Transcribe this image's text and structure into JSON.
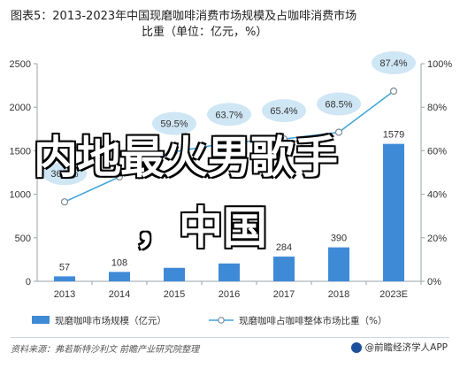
{
  "title_line1": "图表5：2013-2023年中国现磨咖啡消费市场规模及占咖啡消费市场",
  "title_line2": "比重（单位：亿元，%）",
  "chart_data": {
    "type": "bar",
    "categories": [
      "2013",
      "2014",
      "2015",
      "2016",
      "2017",
      "2018",
      "2023E"
    ],
    "series": [
      {
        "name": "现磨咖啡市场规模（亿元）",
        "type": "bar",
        "axis": "left",
        "values": [
          57,
          108,
          155,
          205,
          284,
          390,
          1579
        ],
        "labels": [
          "57",
          "108",
          "",
          "",
          "284",
          "390",
          "1579"
        ],
        "color": "#3f8ad6"
      },
      {
        "name": "现磨咖啡占咖啡整体市场比重（%）",
        "type": "line",
        "axis": "right",
        "values": [
          36.5,
          48,
          59.5,
          63.7,
          65.4,
          68.5,
          87.4
        ],
        "labels": [
          "36.5%",
          "",
          "59.5%",
          "63.7%",
          "65.4%",
          "68.5%",
          "87.4%"
        ],
        "color": "#3fa3dc"
      }
    ],
    "yleft": {
      "min": 0,
      "max": 2500,
      "ticks": [
        "0",
        "500",
        "1000",
        "1500",
        "2000",
        "2500"
      ]
    },
    "yright": {
      "min": 0,
      "max": 100,
      "ticks": [
        "0%",
        "20%",
        "40%",
        "60%",
        "80%",
        "100%"
      ]
    },
    "grid": false,
    "legend": "bottom"
  },
  "overlay_line1": "内地最火男歌手",
  "overlay_line2": "，中国",
  "source": "资料来源：弗若斯特沙利文 前瞻产业研究院整理",
  "brand": "@前瞻经济学人APP"
}
